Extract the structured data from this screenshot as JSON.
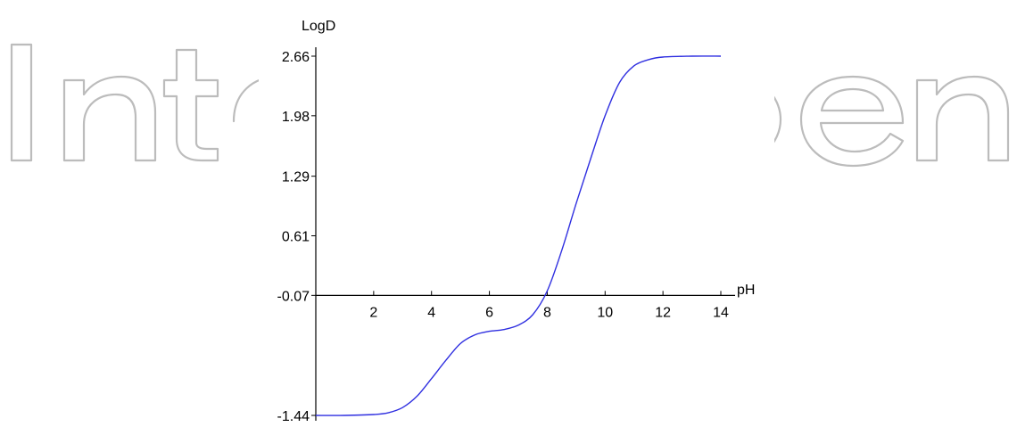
{
  "watermark": {
    "text": "IntechOpen",
    "color": "#bcbcbc",
    "label": "watermark-logo"
  },
  "chart_data": {
    "type": "line",
    "title": "",
    "xlabel": "pH",
    "ylabel": "LogD",
    "xlim": [
      0,
      14
    ],
    "ylim": [
      -1.44,
      2.66
    ],
    "x_ticks": [
      2,
      4,
      6,
      8,
      10,
      12,
      14
    ],
    "x_tick_labels": [
      "2",
      "4",
      "6",
      "8",
      "10",
      "12",
      "14"
    ],
    "y_ticks": [
      -1.44,
      -0.07,
      0.61,
      1.29,
      1.98,
      2.66
    ],
    "y_tick_labels": [
      "-1.44",
      "-0.07",
      "0.61",
      "1.29",
      "1.98",
      "2.66"
    ],
    "x_axis_crosses_y_at": -0.07,
    "grid": false,
    "legend": "none",
    "series": [
      {
        "color": "#2f2fe0",
        "x": [
          0,
          1,
          2,
          2.5,
          3,
          3.5,
          4,
          4.5,
          5,
          5.5,
          6,
          6.5,
          7,
          7.5,
          8,
          8.5,
          9,
          9.5,
          10,
          10.5,
          11,
          11.5,
          12,
          13,
          14
        ],
        "y": [
          -1.44,
          -1.44,
          -1.43,
          -1.41,
          -1.35,
          -1.22,
          -1.02,
          -0.81,
          -0.62,
          -0.52,
          -0.48,
          -0.46,
          -0.41,
          -0.29,
          -0.02,
          0.44,
          0.98,
          1.49,
          1.98,
          2.36,
          2.55,
          2.62,
          2.65,
          2.66,
          2.66
        ]
      }
    ]
  }
}
